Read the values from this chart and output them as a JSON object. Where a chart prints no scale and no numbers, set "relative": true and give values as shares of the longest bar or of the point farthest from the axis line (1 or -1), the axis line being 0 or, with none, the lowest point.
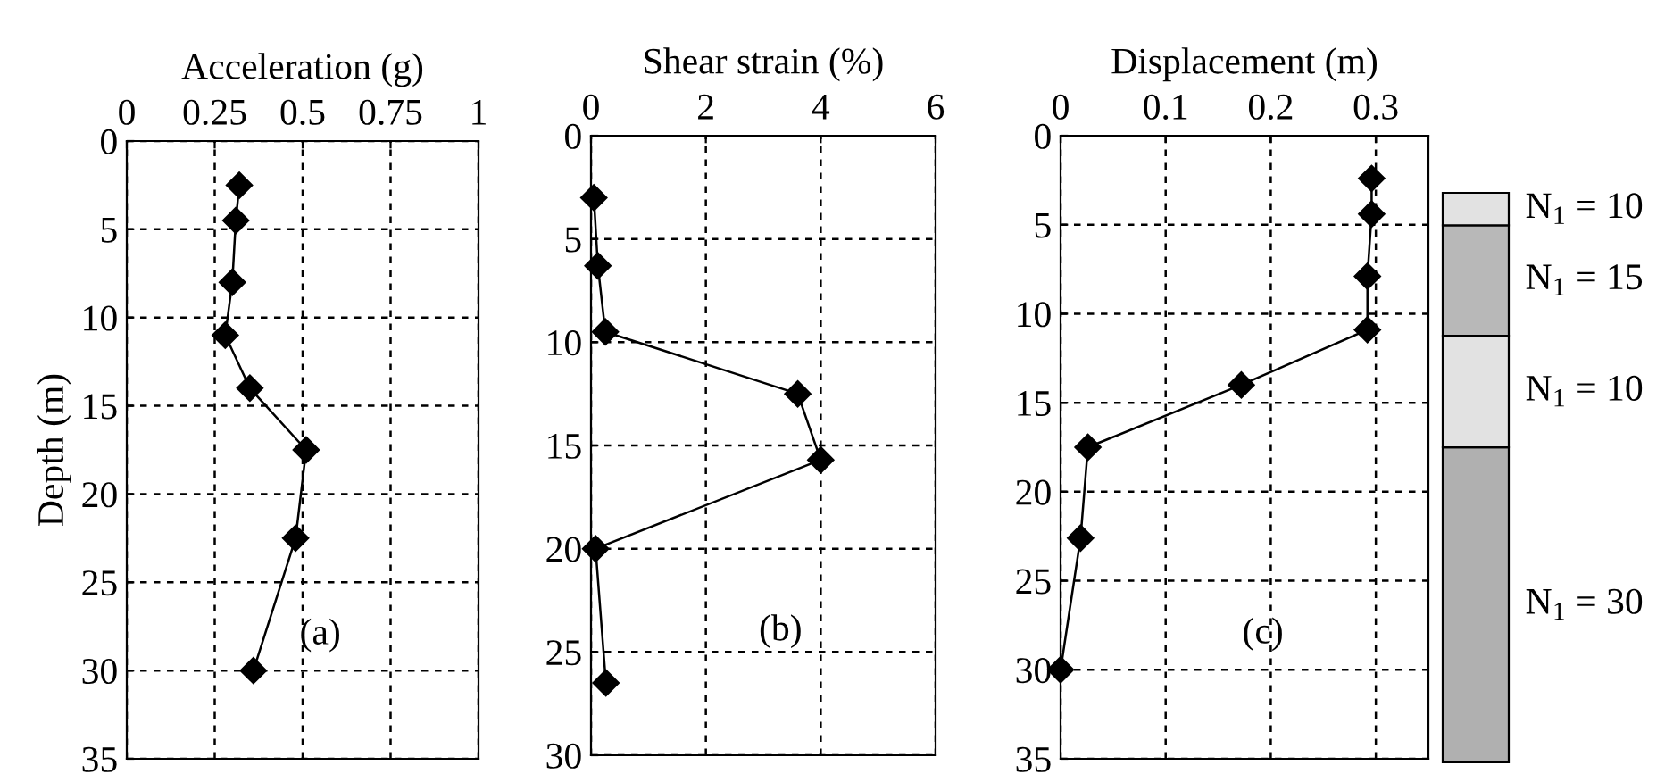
{
  "chart_data": [
    {
      "type": "line",
      "xlabel": "Acceleration (g)",
      "ylabel": "Depth (m)",
      "xlim": [
        0,
        1
      ],
      "xticks": [
        0,
        0.25,
        0.5,
        0.75,
        1
      ],
      "ylim": [
        35,
        0
      ],
      "yticks": [
        0,
        5,
        10,
        15,
        20,
        25,
        30,
        35
      ],
      "grid": true,
      "marker": "diamond",
      "line_style": "solid",
      "annotations": [
        "(a)"
      ],
      "series": [
        {
          "color": "#000000",
          "x": [
            0.32,
            0.31,
            0.3,
            0.28,
            0.35,
            0.51,
            0.48,
            0.36
          ],
          "values": [
            2.5,
            4.5,
            8,
            11,
            14,
            17.5,
            22.5,
            30
          ]
        }
      ]
    },
    {
      "type": "line",
      "xlabel": "Shear strain (%)",
      "xlim": [
        0,
        6
      ],
      "xticks": [
        0,
        2,
        4,
        6
      ],
      "ylim": [
        30,
        0
      ],
      "yticks": [
        0,
        5,
        10,
        15,
        20,
        25,
        30
      ],
      "grid": true,
      "marker": "diamond",
      "line_style": "solid",
      "annotations": [
        "(b)"
      ],
      "series": [
        {
          "color": "#000000",
          "x": [
            0.05,
            0.12,
            0.25,
            3.6,
            4.0,
            0.08,
            0.26
          ],
          "values": [
            3,
            6.3,
            9.5,
            12.5,
            15.7,
            20,
            26.5
          ]
        }
      ]
    },
    {
      "type": "line",
      "xlabel": "Displacement (m)",
      "xlim": [
        0,
        0.35
      ],
      "xticks": [
        0,
        0.1,
        0.2,
        0.3
      ],
      "ylim": [
        35,
        0
      ],
      "yticks": [
        0,
        5,
        10,
        15,
        20,
        25,
        30,
        35
      ],
      "grid": true,
      "marker": "diamond",
      "line_style": "solid",
      "annotations": [
        "(c)"
      ],
      "series": [
        {
          "color": "#000000",
          "x": [
            0.296,
            0.296,
            0.292,
            0.292,
            0.172,
            0.026,
            0.019,
            0.0
          ],
          "values": [
            2.4,
            4.4,
            7.9,
            10.9,
            14,
            17.5,
            22.6,
            30
          ]
        }
      ]
    },
    {
      "type": "bar",
      "stacked": true,
      "relative": true,
      "categories": [
        null
      ],
      "series": [
        {
          "name": "N$_{1}$ = 30",
          "color": "#b0b0b0",
          "values": [
            0.553
          ]
        },
        {
          "name": "N$_{1}$ = 10",
          "color": "#e2e2e2",
          "values": [
            0.196
          ]
        },
        {
          "name": "N$_{1}$ = 15",
          "color": "#b8b8b8",
          "values": [
            0.194
          ]
        },
        {
          "name": "N$_{1}$ = 10",
          "color": "#e2e2e2",
          "values": [
            0.057
          ]
        }
      ]
    }
  ]
}
